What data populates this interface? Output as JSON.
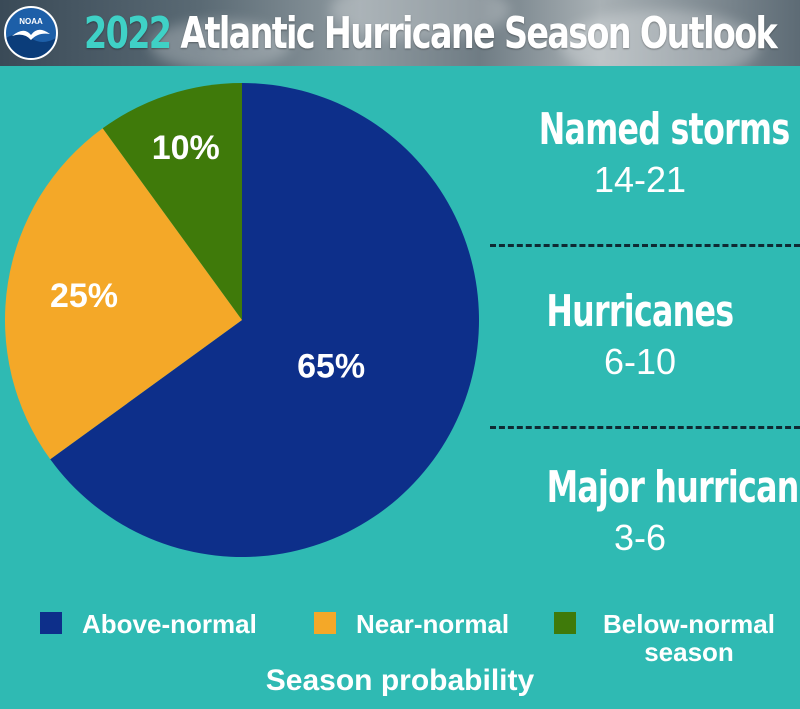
{
  "header": {
    "logo_text": "NOAA",
    "title_year": "2022",
    "title_rest": "Atlantic Hurricane Season Outlook"
  },
  "colors": {
    "background": "#2fbab3",
    "above_normal": "#0d2f8a",
    "near_normal": "#f4a828",
    "below_normal": "#3f7a0a"
  },
  "chart_data": {
    "type": "pie",
    "categories": [
      "Above-normal",
      "Near-normal",
      "Below-normal season"
    ],
    "values": [
      65,
      25,
      10
    ],
    "labels": [
      "65%",
      "25%",
      "10%"
    ],
    "title": "Season probability",
    "legend_position": "bottom"
  },
  "stats": [
    {
      "label": "Named storms",
      "value": "14-21"
    },
    {
      "label": "Hurricanes",
      "value": "6-10"
    },
    {
      "label": "Major hurricanes",
      "value": "3-6"
    }
  ],
  "legend": [
    {
      "label": "Above-normal"
    },
    {
      "label": "Near-normal"
    },
    {
      "label": "Below-normal season"
    }
  ],
  "footer": {
    "label": "Season probability"
  }
}
